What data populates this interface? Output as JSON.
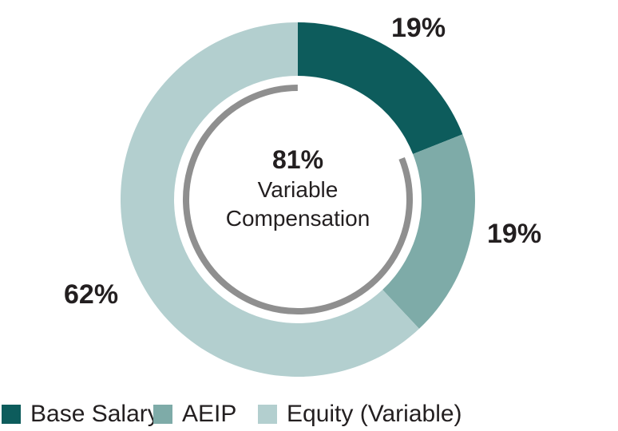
{
  "chart_data": {
    "type": "pie",
    "variant": "donut",
    "categories": [
      "Base Salary",
      "AEIP",
      "Equity (Variable)"
    ],
    "values": [
      19,
      19,
      62
    ],
    "colors": [
      "#0d5c5c",
      "#7eaba8",
      "#b3cfcf"
    ],
    "data_labels": [
      "19%",
      "19%",
      "62%"
    ],
    "center_label": {
      "value": "81%",
      "line1": "Variable",
      "line2": "Compensation"
    },
    "inner_arc": {
      "description": "gray arc spanning variable compensation portion",
      "color": "#8f8f8f",
      "fraction": 81
    },
    "legend_position": "bottom"
  },
  "labels": {
    "base": "19%",
    "aeip": "19%",
    "equity": "62%"
  },
  "center": {
    "value": "81%",
    "line1": "Variable",
    "line2": "Compensation"
  },
  "legend": [
    {
      "label": "Base Salary",
      "color": "#0d5c5c"
    },
    {
      "label": "AEIP",
      "color": "#7eaba8"
    },
    {
      "label": "Equity (Variable)",
      "color": "#b3cfcf"
    }
  ]
}
